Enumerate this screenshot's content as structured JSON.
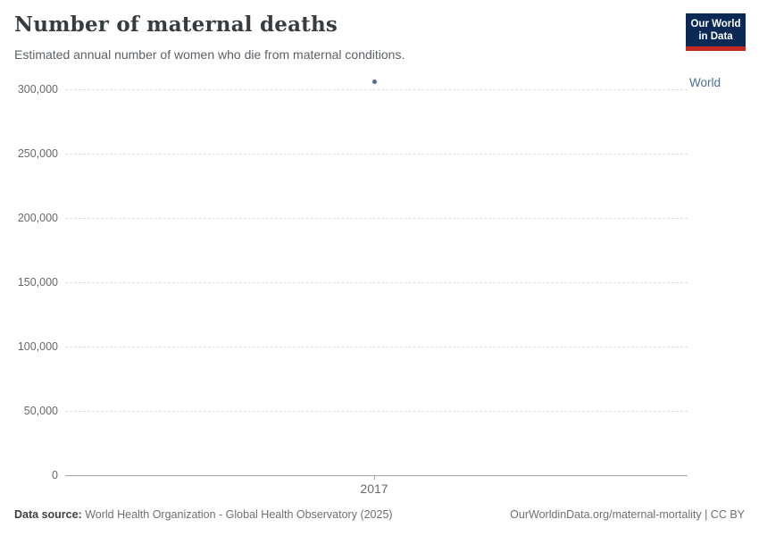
{
  "header": {
    "title": "Number of maternal deaths",
    "subtitle": "Estimated annual number of women who die from maternal conditions.",
    "logo": {
      "line1": "Our World",
      "line2": "in Data"
    }
  },
  "chart_data": {
    "type": "scatter",
    "title": "Number of maternal deaths",
    "xlabel": "",
    "ylabel": "",
    "x": [
      2017
    ],
    "series": [
      {
        "name": "World",
        "values": [
          306000
        ]
      }
    ],
    "x_tick_labels": [
      "2017"
    ],
    "y_ticks": [
      0,
      50000,
      100000,
      150000,
      200000,
      250000,
      300000
    ],
    "ylim": [
      0,
      310000
    ],
    "grid": "horizontal-dashed",
    "legend_position": "right-of-point-label"
  },
  "footer": {
    "datasource_label": "Data source:",
    "datasource_text": " World Health Organization - Global Health Observatory (2025)",
    "link_text": "OurWorldinData.org/maternal-mortality | CC BY"
  },
  "colors": {
    "accent_blue": "#4c6a9c",
    "logo_bg": "#0a2a55",
    "logo_red": "#c5281f",
    "gridline": "#dcdee0",
    "axis": "#a5a7aa",
    "tick_text": "#67696c",
    "title_text": "#373c41",
    "subtitle_text": "#5b6166"
  }
}
